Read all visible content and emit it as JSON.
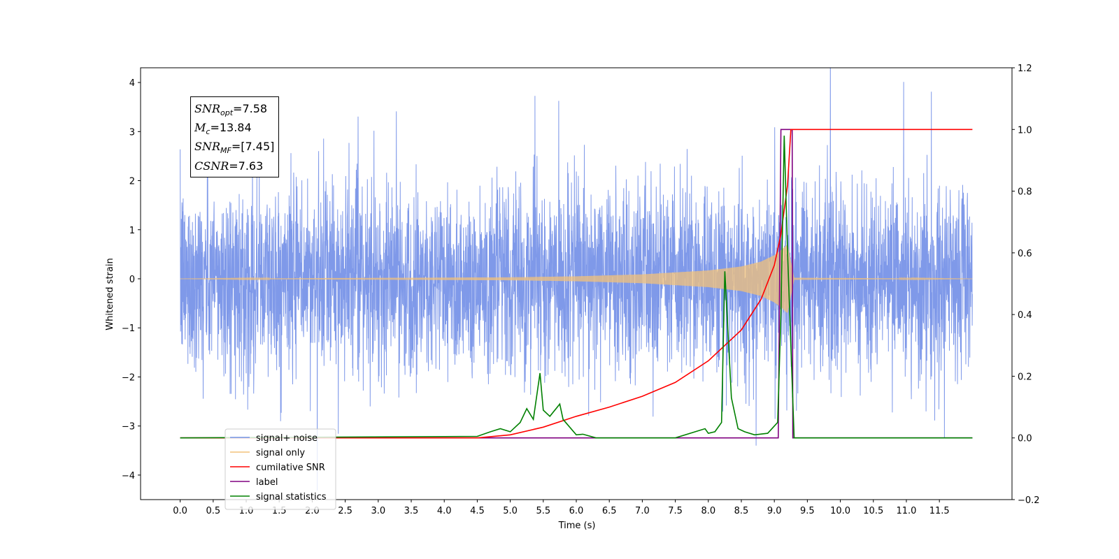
{
  "chart_data": {
    "type": "line",
    "xlabel": "Time (s)",
    "ylabel": "Whitened strain",
    "x_ticks": [
      "0.0",
      "0.5",
      "1.0",
      "1.5",
      "2.0",
      "2.5",
      "3.0",
      "3.5",
      "4.0",
      "4.5",
      "5.0",
      "5.5",
      "6.0",
      "6.5",
      "7.0",
      "7.5",
      "8.0",
      "8.5",
      "9.0",
      "9.5",
      "10.0",
      "10.5",
      "11.0",
      "11.5"
    ],
    "xlim": [
      -0.6,
      12.6
    ],
    "ylim_left": [
      -4.5,
      4.3
    ],
    "ylim_right": [
      -0.2,
      1.2
    ],
    "y_ticks_left": [
      "4",
      "3",
      "2",
      "1",
      "0",
      "−1",
      "−2",
      "−3",
      "−4"
    ],
    "y_ticks_right": [
      "1.2",
      "1.0",
      "0.8",
      "0.6",
      "0.4",
      "0.2",
      "0.0",
      "−0.2"
    ],
    "annotation": {
      "snr_opt": "7.58",
      "mc": "13.84",
      "snr_mf": "[7.45]",
      "csnr": "7.63"
    },
    "legend_position": "lower-left",
    "series": [
      {
        "name": "signal+ noise",
        "color": "#7893e8",
        "axis": "left",
        "x_range": [
          0.0,
          12.0
        ],
        "noise_std": 0.95
      },
      {
        "name": "signal only",
        "color": "#f2c27a",
        "axis": "left",
        "x_range": [
          0.0,
          12.0
        ],
        "envelope": [
          [
            0,
            0.0
          ],
          [
            5.0,
            0.03
          ],
          [
            6.0,
            0.05
          ],
          [
            7.0,
            0.09
          ],
          [
            8.0,
            0.17
          ],
          [
            8.5,
            0.25
          ],
          [
            8.8,
            0.35
          ],
          [
            9.0,
            0.48
          ],
          [
            9.1,
            0.58
          ],
          [
            9.2,
            0.7
          ],
          [
            9.25,
            0.35
          ],
          [
            9.3,
            0.02
          ],
          [
            12.0,
            0.0
          ]
        ]
      },
      {
        "name": "cumilative SNR",
        "color": "#ff0000",
        "axis": "right",
        "x": [
          0.0,
          4.5,
          5.0,
          5.5,
          6.0,
          6.5,
          7.0,
          7.5,
          8.0,
          8.5,
          8.8,
          9.0,
          9.1,
          9.2,
          9.25,
          9.3,
          12.0
        ],
        "y": [
          0.0,
          0.0,
          0.01,
          0.035,
          0.07,
          0.1,
          0.135,
          0.18,
          0.25,
          0.35,
          0.45,
          0.56,
          0.66,
          0.82,
          1.0,
          1.0,
          1.0
        ]
      },
      {
        "name": "label",
        "color": "#800080",
        "axis": "right",
        "x": [
          0.0,
          9.06,
          9.1,
          9.27,
          9.28,
          12.0
        ],
        "y": [
          0.0,
          0.0,
          1.0,
          1.0,
          0.0,
          0.0
        ]
      },
      {
        "name": "signal statistics",
        "color": "#008000",
        "axis": "right",
        "x": [
          0.0,
          4.5,
          4.7,
          4.85,
          5.0,
          5.15,
          5.25,
          5.35,
          5.45,
          5.5,
          5.6,
          5.75,
          5.8,
          6.0,
          6.1,
          6.3,
          7.5,
          7.95,
          8.0,
          8.1,
          8.2,
          8.25,
          8.35,
          8.45,
          8.55,
          8.7,
          8.9,
          9.05,
          9.1,
          9.15,
          9.2,
          9.3,
          12.0
        ],
        "y": [
          0.0,
          0.005,
          0.02,
          0.03,
          0.02,
          0.05,
          0.095,
          0.06,
          0.21,
          0.09,
          0.07,
          0.11,
          0.06,
          0.01,
          0.012,
          0.0,
          0.0,
          0.03,
          0.015,
          0.02,
          0.05,
          0.54,
          0.13,
          0.03,
          0.02,
          0.01,
          0.015,
          0.05,
          0.4,
          0.98,
          0.6,
          0.0,
          0.0
        ]
      }
    ]
  },
  "legend": {
    "items": [
      {
        "label": "signal+ noise",
        "color": "#7893e8"
      },
      {
        "label": "signal only",
        "color": "#f2c27a"
      },
      {
        "label": "cumilative SNR",
        "color": "#ff0000"
      },
      {
        "label": "label",
        "color": "#800080"
      },
      {
        "label": "signal statistics",
        "color": "#008000"
      }
    ]
  }
}
